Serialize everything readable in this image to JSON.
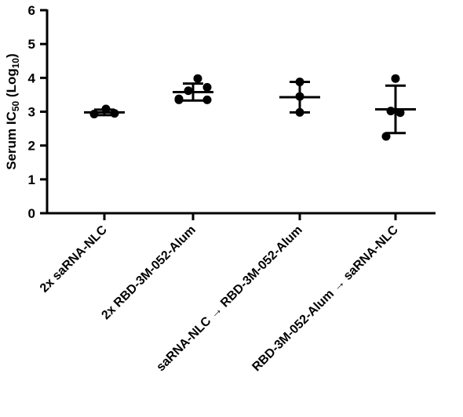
{
  "chart_data": {
    "type": "scatter",
    "title": "",
    "xlabel": "",
    "ylabel": "Serum IC50 (Log10)",
    "ylabel_parts": [
      {
        "text": "Serum IC",
        "sub": false
      },
      {
        "text": "50",
        "sub": true
      },
      {
        "text": " (Log",
        "sub": false
      },
      {
        "text": "10",
        "sub": true
      },
      {
        "text": ")",
        "sub": false
      }
    ],
    "ylim": [
      0,
      6
    ],
    "yticks": [
      "0",
      "1",
      "2",
      "3",
      "4",
      "5",
      "6"
    ],
    "grid": false,
    "categories": [
      "2x saRNA-NLC",
      "2x RBD-3M-052-Alum",
      "saRNA-NLC → RBD-3M-052-Alum",
      "RBD-3M-052-Alum → saRNA-NLC"
    ],
    "groups": [
      {
        "points": [
          2.93,
          3.08,
          2.95
        ],
        "mean": 2.98,
        "sd_low": 2.9,
        "sd_high": 3.06
      },
      {
        "points": [
          3.38,
          3.62,
          3.98,
          3.35,
          3.72,
          3.35
        ],
        "mean": 3.58,
        "sd_low": 3.33,
        "sd_high": 3.83
      },
      {
        "points": [
          2.98,
          3.45,
          3.88
        ],
        "mean": 3.43,
        "sd_low": 2.98,
        "sd_high": 3.88
      },
      {
        "points": [
          2.27,
          3.02,
          2.97,
          3.98
        ],
        "mean": 3.07,
        "sd_low": 2.37,
        "sd_high": 3.77
      }
    ],
    "colors": {
      "points": "#000000",
      "axis": "#000000"
    }
  }
}
